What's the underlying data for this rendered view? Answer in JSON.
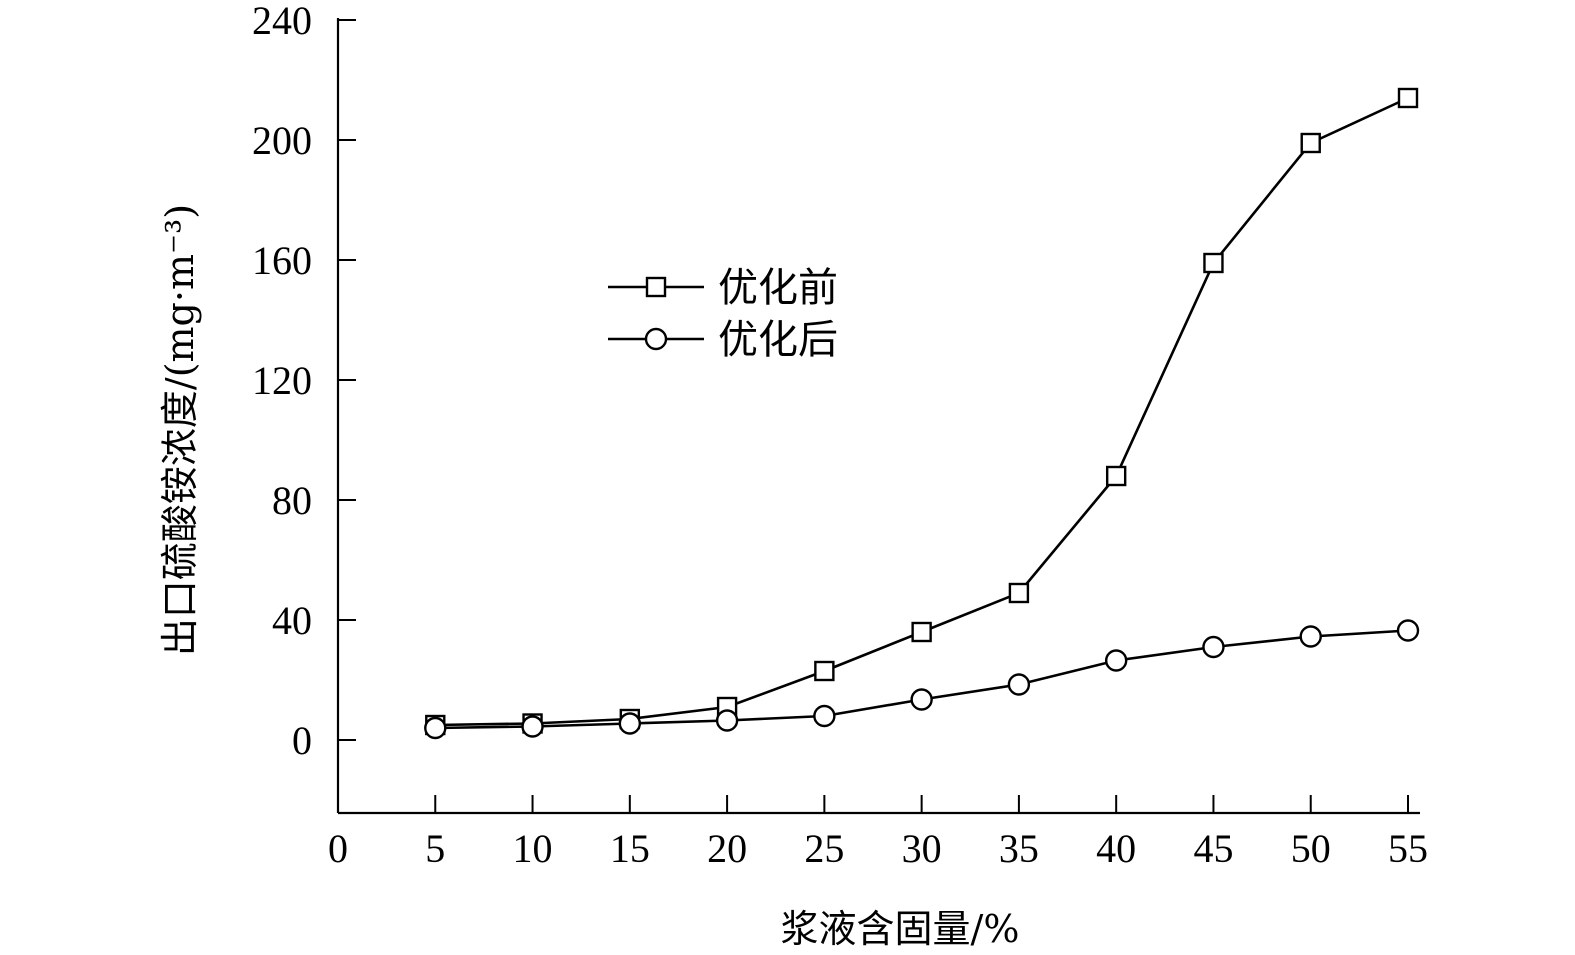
{
  "chart_data": {
    "type": "line",
    "xlabel": "浆液含固量/%",
    "ylabel": "出口硫酸铵浓度/(mg·m⁻³)",
    "xlim": [
      0,
      55
    ],
    "ylim": [
      -25,
      240
    ],
    "x_ticks": [
      0,
      5,
      10,
      15,
      20,
      25,
      30,
      35,
      40,
      45,
      50,
      55
    ],
    "y_ticks": [
      0,
      40,
      80,
      120,
      160,
      200,
      240
    ],
    "x": [
      5,
      10,
      15,
      20,
      25,
      30,
      35,
      40,
      45,
      50,
      55
    ],
    "series": [
      {
        "name": "优化前",
        "marker": "square",
        "values": [
          5,
          5.5,
          7,
          11,
          23,
          36,
          49,
          88,
          159,
          199,
          214
        ]
      },
      {
        "name": "优化后",
        "marker": "circle",
        "values": [
          4,
          4.5,
          5.5,
          6.5,
          8,
          13.5,
          18.5,
          26.5,
          31,
          34.5,
          36.5
        ]
      }
    ],
    "grid": false,
    "legend_position": "center"
  }
}
